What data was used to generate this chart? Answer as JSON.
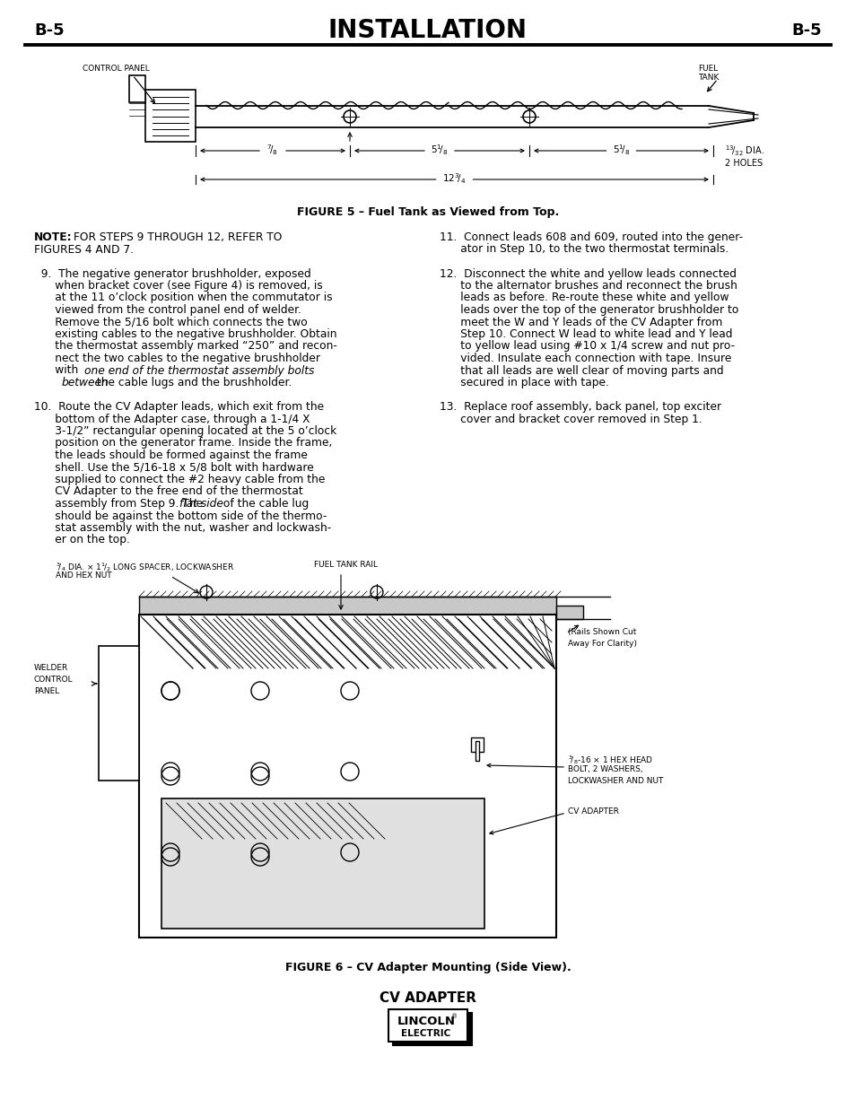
{
  "page_label_left": "B-5",
  "page_label_right": "B-5",
  "title": "INSTALLATION",
  "bg_color": "#ffffff",
  "text_color": "#000000",
  "figure5_caption": "FIGURE 5 – Fuel Tank as Viewed from Top.",
  "figure6_caption": "FIGURE 6 – CV Adapter Mounting (Side View).",
  "footer_title": "CV ADAPTER",
  "note_bold": "NOTE:",
  "note_rest": " FOR STEPS 9 THROUGH 12, REFER TO",
  "note_line2": "FIGURES 4 AND 7.",
  "step9_lines": [
    "  9.  The negative generator brushholder, exposed",
    "      when bracket cover (see Figure 4) is removed, is",
    "      at the 11 o’clock position when the commutator is",
    "      viewed from the control panel end of welder.",
    "      Remove the 5/16 bolt which connects the two",
    "      existing cables to the negative brushholder. Obtain",
    "      the thermostat assembly marked “250” and recon-",
    "      nect the two cables to the negative brushholder",
    "      with |one end of the thermostat assembly bolts|",
    "      |between| the cable lugs and the brushholder."
  ],
  "step10_lines": [
    "10.  Route the CV Adapter leads, which exit from the",
    "      bottom of the Adapter case, through a 1-1/4 X",
    "      3-1/2” rectangular opening located at the 5 o’clock",
    "      position on the generator frame. Inside the frame,",
    "      the leads should be formed against the frame",
    "      shell. Use the 5/16-18 x 5/8 bolt with hardware",
    "      supplied to connect the #2 heavy cable from the",
    "      CV Adapter to the free end of the thermostat",
    "      assembly from Step 9. The |flat side| of the cable lug",
    "      should be against the bottom side of the thermo-",
    "      stat assembly with the nut, washer and lockwash-",
    "      er on the top."
  ],
  "step11_lines": [
    "11.  Connect leads 608 and 609, routed into the gener-",
    "      ator in Step 10, to the two thermostat terminals."
  ],
  "step12_lines": [
    "12.  Disconnect the white and yellow leads connected",
    "      to the alternator brushes and reconnect the brush",
    "      leads as before. Re-route these white and yellow",
    "      leads over the top of the generator brushholder to",
    "      meet the W and Y leads of the CV Adapter from",
    "      Step 10. Connect W lead to white lead and Y lead",
    "      to yellow lead using #10 x 1/4 screw and nut pro-",
    "      vided. Insulate each connection with tape. Insure",
    "      that all leads are well clear of moving parts and",
    "      secured in place with tape."
  ],
  "step13_lines": [
    "13.  Replace roof assembly, back panel, top exciter",
    "      cover and bracket cover removed in Step 1."
  ]
}
